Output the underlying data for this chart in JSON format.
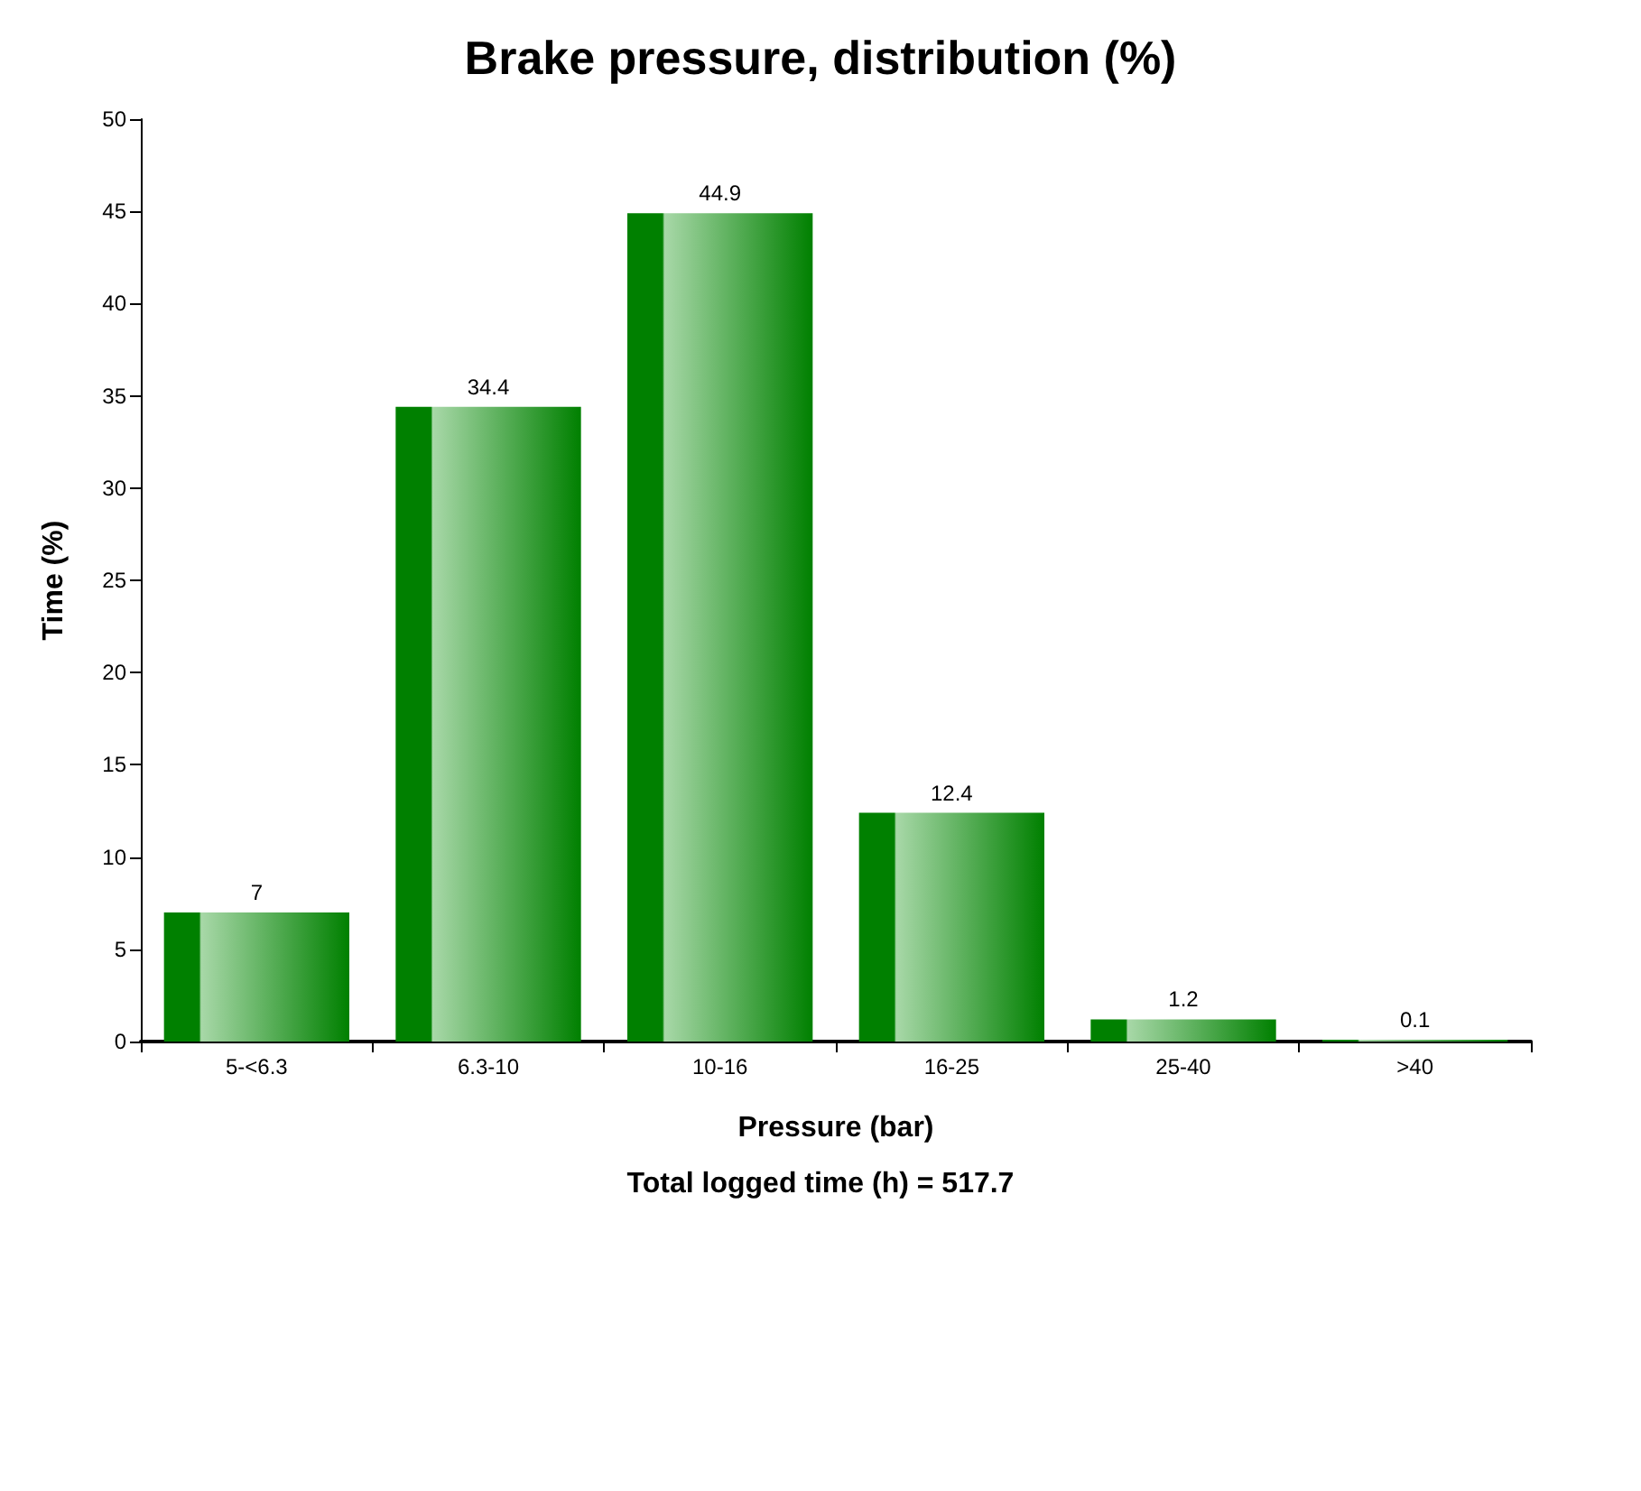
{
  "chart_data": {
    "type": "bar",
    "title": "Brake pressure, distribution (%)",
    "xlabel": "Pressure (bar)",
    "ylabel": "Time (%)",
    "categories": [
      "5-<6.3",
      "6.3-10",
      "10-16",
      "16-25",
      "25-40",
      ">40"
    ],
    "values": [
      7,
      34.4,
      44.9,
      12.4,
      1.2,
      0.1
    ],
    "color": "#008000",
    "ylim": [
      0,
      50
    ],
    "yticks": [
      0,
      5,
      10,
      15,
      20,
      25,
      30,
      35,
      40,
      45,
      50
    ],
    "grid": false,
    "data_labels": true,
    "annotations": [
      "Total logged time (h) = 517.7"
    ]
  }
}
